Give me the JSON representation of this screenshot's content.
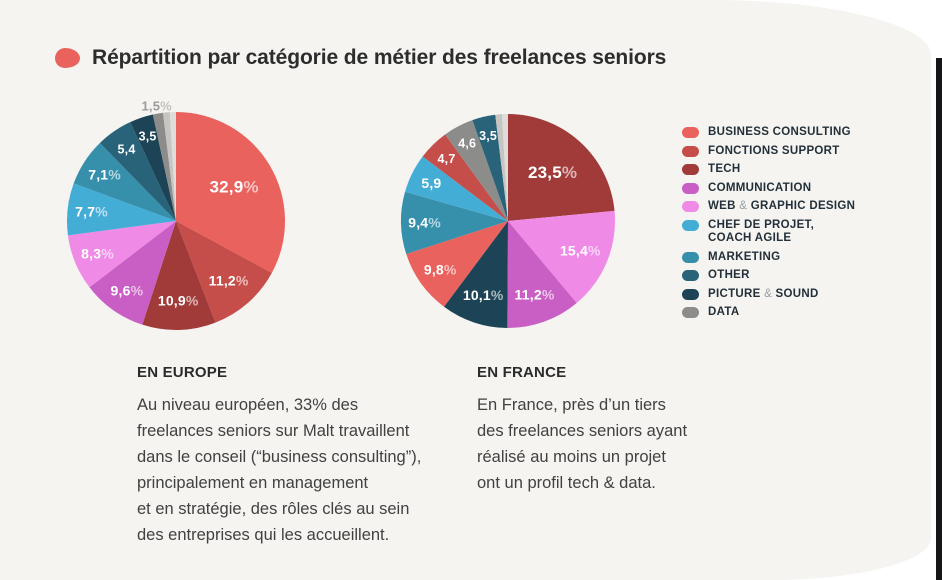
{
  "page": {
    "title": "Répartition par catégorie de métier des freelances seniors",
    "background_color": "#f5f4f1",
    "accent_color": "#e9625d",
    "edge_color": "#161616"
  },
  "legend": {
    "items": [
      {
        "lines": [
          "BUSINESS CONSULTING"
        ],
        "color": "#e9625d"
      },
      {
        "lines": [
          "FONCTIONS SUPPORT"
        ],
        "color": "#c54e4a"
      },
      {
        "lines": [
          "TECH"
        ],
        "color": "#a03b39"
      },
      {
        "lines": [
          "COMMUNICATION"
        ],
        "color": "#c95fc4"
      },
      {
        "lines": [
          "WEB & GRAPHIC DESIGN"
        ],
        "color": "#ef8be7"
      },
      {
        "lines": [
          "CHEF DE PROJET,",
          "COACH AGILE"
        ],
        "color": "#44add5"
      },
      {
        "lines": [
          "MARKETING"
        ],
        "color": "#3690ac"
      },
      {
        "lines": [
          "OTHER"
        ],
        "color": "#28637a"
      },
      {
        "lines": [
          "PICTURE & SOUND"
        ],
        "color": "#1d4456"
      },
      {
        "lines": [
          "DATA"
        ],
        "color": "#8c8c8a"
      }
    ]
  },
  "chart_data": [
    {
      "type": "pie",
      "title": "EN EUROPE",
      "value_unit": "%",
      "value_format": "French decimal comma",
      "slices": [
        {
          "category": "BUSINESS CONSULTING",
          "value": 32.9,
          "label": "32,9",
          "percent_sign": true,
          "color": "#e9625d"
        },
        {
          "category": "FONCTIONS SUPPORT",
          "value": 11.2,
          "label": "11,2",
          "percent_sign": true,
          "color": "#c54e4a"
        },
        {
          "category": "TECH",
          "value": 10.9,
          "label": "10,9",
          "percent_sign": true,
          "color": "#a03b39"
        },
        {
          "category": "COMMUNICATION",
          "value": 9.6,
          "label": "9,6",
          "percent_sign": true,
          "color": "#c95fc4"
        },
        {
          "category": "WEB & GRAPHIC DESIGN",
          "value": 8.3,
          "label": "8,3",
          "percent_sign": true,
          "color": "#ef8be7"
        },
        {
          "category": "CHEF DE PROJET, COACH AGILE",
          "value": 7.7,
          "label": "7,7",
          "percent_sign": true,
          "color": "#44add5"
        },
        {
          "category": "MARKETING",
          "value": 7.1,
          "label": "7,1",
          "percent_sign": true,
          "color": "#3690ac"
        },
        {
          "category": "OTHER",
          "value": 5.4,
          "label": "5,4",
          "percent_sign": false,
          "color": "#28637a"
        },
        {
          "category": "PICTURE & SOUND",
          "value": 3.5,
          "label": "3,5",
          "percent_sign": false,
          "color": "#1d4456"
        },
        {
          "category": "DATA",
          "value": 1.5,
          "label": "1,5",
          "percent_sign": true,
          "color": "#8c8c8a",
          "outside": true
        },
        {
          "category": "",
          "value": 1.0,
          "label": null,
          "percent_sign": false,
          "color": "#c6c5c2"
        },
        {
          "category": "",
          "value": 0.9,
          "label": null,
          "percent_sign": false,
          "color": "#deddda"
        }
      ]
    },
    {
      "type": "pie",
      "title": "EN FRANCE",
      "value_unit": "%",
      "value_format": "French decimal comma",
      "slices": [
        {
          "category": "TECH",
          "value": 23.5,
          "label": "23,5",
          "percent_sign": true,
          "color": "#a03b39"
        },
        {
          "category": "WEB & GRAPHIC DESIGN",
          "value": 15.4,
          "label": "15,4",
          "percent_sign": true,
          "color": "#ef8be7"
        },
        {
          "category": "COMMUNICATION",
          "value": 11.2,
          "label": "11,2",
          "percent_sign": true,
          "color": "#c95fc4"
        },
        {
          "category": "PICTURE & SOUND",
          "value": 10.1,
          "label": "10,1",
          "percent_sign": true,
          "color": "#1d4456"
        },
        {
          "category": "BUSINESS CONSULTING",
          "value": 9.8,
          "label": "9,8",
          "percent_sign": true,
          "color": "#e9625d"
        },
        {
          "category": "MARKETING",
          "value": 9.4,
          "label": "9,4",
          "percent_sign": true,
          "color": "#3690ac"
        },
        {
          "category": "CHEF DE PROJET, COACH AGILE",
          "value": 5.9,
          "label": "5,9",
          "percent_sign": false,
          "color": "#44add5"
        },
        {
          "category": "FONCTIONS SUPPORT",
          "value": 4.7,
          "label": "4,7",
          "percent_sign": false,
          "color": "#c54e4a"
        },
        {
          "category": "DATA",
          "value": 4.6,
          "label": "4,6",
          "percent_sign": false,
          "color": "#8c8c8a"
        },
        {
          "category": "OTHER",
          "value": 3.5,
          "label": "3,5",
          "percent_sign": false,
          "color": "#28637a"
        },
        {
          "category": "",
          "value": 1.0,
          "label": null,
          "percent_sign": false,
          "color": "#c6c5c2"
        },
        {
          "category": "",
          "value": 0.9,
          "label": null,
          "percent_sign": false,
          "color": "#deddda"
        }
      ]
    }
  ],
  "sections": {
    "europe": {
      "heading": "EN EUROPE",
      "body": "Au niveau européen, 33% des\nfreelances seniors sur Malt travaillent\ndans le conseil (“business consulting”),\nprincipalement en management\net en stratégie, des rôles clés au sein\ndes entreprises qui les accueillent."
    },
    "france": {
      "heading": "EN FRANCE",
      "body": "En France, près d’un tiers\ndes freelances seniors ayant\nréalisé au moins un projet\nont un profil tech & data."
    }
  }
}
